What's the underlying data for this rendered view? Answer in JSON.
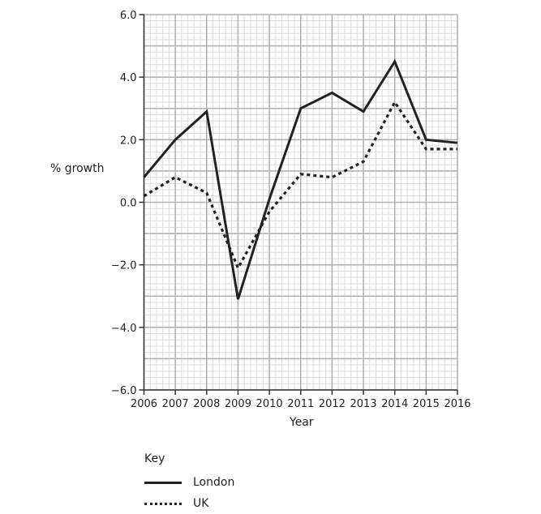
{
  "chart_data": {
    "type": "line",
    "title": "",
    "xlabel": "Year",
    "ylabel": "% growth",
    "x": [
      2006,
      2007,
      2008,
      2009,
      2010,
      2011,
      2012,
      2013,
      2014,
      2015,
      2016
    ],
    "x_tick_labels": [
      "2006",
      "2007",
      "2008",
      "2009",
      "2010",
      "2011",
      "2012",
      "2013",
      "2014",
      "2015",
      "2016"
    ],
    "y_tick_labels": [
      "6.0",
      "4.0",
      "2.0",
      "0.0",
      "−2.0",
      "−4.0",
      "−6.0"
    ],
    "y_ticks": [
      6,
      4,
      2,
      0,
      -2,
      -4,
      -6
    ],
    "ylim": [
      -6,
      6
    ],
    "xlim": [
      2006,
      2016
    ],
    "grid": true,
    "grid_major_y_step": 1.0,
    "grid_minor_y_step": 0.2,
    "grid_major_x_step": 1,
    "grid_minor_x_step": 0.2,
    "legend_position": "bottom-left",
    "series": [
      {
        "name": "London",
        "style": "solid",
        "values": [
          0.8,
          2.0,
          2.9,
          -3.1,
          0.1,
          3.0,
          3.5,
          2.9,
          4.5,
          2.0,
          1.9
        ]
      },
      {
        "name": "UK",
        "style": "dotted",
        "values": [
          0.2,
          0.8,
          0.3,
          -2.1,
          -0.3,
          0.9,
          0.8,
          1.3,
          3.2,
          1.7,
          1.7
        ]
      }
    ]
  },
  "labels": {
    "ylabel": "% growth",
    "xlabel": "Year",
    "key_title": "Key",
    "key_london": "London",
    "key_uk": "UK"
  },
  "colors": {
    "line": "#222222",
    "grid_major": "#b3b3b3",
    "grid_minor": "#dcdcdc",
    "axis": "#333333"
  }
}
